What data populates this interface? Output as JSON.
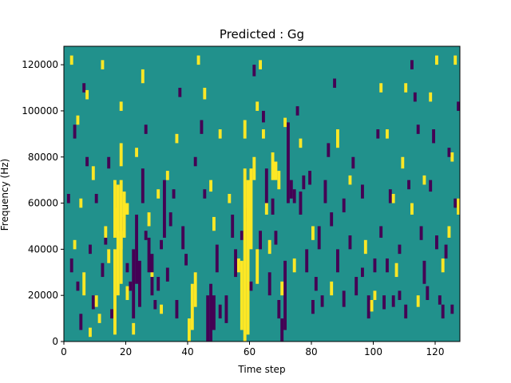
{
  "chart_data": {
    "type": "heatmap",
    "title": "Predicted : Gg",
    "xlabel": "Time step",
    "ylabel": "Frequency (Hz)",
    "xlim": [
      0,
      128
    ],
    "ylim": [
      0,
      128000
    ],
    "x_ticks": [
      0,
      20,
      40,
      60,
      80,
      100,
      120
    ],
    "y_ticks": [
      0,
      20000,
      40000,
      60000,
      80000,
      100000,
      120000
    ],
    "x_tick_labels": [
      "0",
      "20",
      "40",
      "60",
      "80",
      "100",
      "120"
    ],
    "y_tick_labels": [
      "0",
      "20000",
      "40000",
      "60000",
      "80000",
      "100000",
      "120000"
    ],
    "grid": false,
    "colormap": {
      "low": "#440154",
      "mid": "#21918c",
      "high": "#fde725"
    },
    "background_value": "mid",
    "bins": {
      "time_steps": 128,
      "frequency_bins": 128,
      "bin_width_hz": 1000
    },
    "high_segments": [
      [
        16,
        3000,
        40000
      ],
      [
        16,
        45000,
        70000
      ],
      [
        17,
        20000,
        68000
      ],
      [
        18,
        25000,
        70000
      ],
      [
        18,
        40000,
        48000
      ],
      [
        19,
        45000,
        65000
      ],
      [
        18,
        76000,
        86000
      ],
      [
        16,
        48000,
        58000
      ],
      [
        57,
        5000,
        35000
      ],
      [
        58,
        0,
        75000
      ],
      [
        59,
        3000,
        70000
      ],
      [
        60,
        40000,
        75000
      ],
      [
        58,
        88000,
        96000
      ],
      [
        62,
        25000,
        40000
      ],
      [
        61,
        70000,
        80000
      ],
      [
        41,
        5000,
        25000
      ],
      [
        42,
        15000,
        30000
      ],
      [
        40,
        0,
        10000
      ],
      [
        67,
        70000,
        82000
      ],
      [
        68,
        70000,
        78000
      ],
      [
        69,
        66000,
        74000
      ],
      [
        20,
        55000,
        60000
      ],
      [
        20,
        18000,
        24000
      ],
      [
        22,
        3000,
        8000
      ],
      [
        13,
        45000,
        50000
      ],
      [
        10,
        15000,
        20000
      ],
      [
        6,
        20000,
        30000
      ],
      [
        3,
        40000,
        44000
      ],
      [
        2,
        120000,
        124000
      ],
      [
        7,
        105000,
        109000
      ],
      [
        12,
        118000,
        122000
      ],
      [
        18,
        100000,
        104000
      ],
      [
        25,
        112000,
        118000
      ],
      [
        28,
        28000,
        30000
      ],
      [
        30,
        62000,
        66000
      ],
      [
        33,
        70000,
        74000
      ],
      [
        36,
        86000,
        90000
      ],
      [
        43,
        120000,
        124000
      ],
      [
        45,
        105000,
        110000
      ],
      [
        47,
        65000,
        70000
      ],
      [
        48,
        48000,
        54000
      ],
      [
        50,
        88000,
        92000
      ],
      [
        53,
        60000,
        64000
      ],
      [
        56,
        30000,
        36000
      ],
      [
        62,
        100000,
        104000
      ],
      [
        63,
        118000,
        122000
      ],
      [
        64,
        88000,
        92000
      ],
      [
        65,
        55000,
        60000
      ],
      [
        66,
        38000,
        44000
      ],
      [
        71,
        93000,
        97000
      ],
      [
        74,
        30000,
        36000
      ],
      [
        88,
        84000,
        92000
      ],
      [
        92,
        68000,
        72000
      ],
      [
        97,
        38000,
        44000
      ],
      [
        99,
        13000,
        18000
      ],
      [
        100,
        18000,
        22000
      ],
      [
        102,
        108000,
        112000
      ],
      [
        104,
        88000,
        92000
      ],
      [
        106,
        60000,
        64000
      ],
      [
        107,
        28000,
        34000
      ],
      [
        109,
        75000,
        80000
      ],
      [
        110,
        108000,
        112000
      ],
      [
        112,
        55000,
        60000
      ],
      [
        114,
        15000,
        20000
      ],
      [
        116,
        68000,
        72000
      ],
      [
        118,
        104000,
        108000
      ],
      [
        120,
        120000,
        124000
      ],
      [
        122,
        30000,
        36000
      ],
      [
        124,
        45000,
        50000
      ],
      [
        125,
        78000,
        82000
      ],
      [
        126,
        120000,
        124000
      ],
      [
        127,
        55000,
        62000
      ],
      [
        86,
        20000,
        26000
      ],
      [
        80,
        44000,
        50000
      ],
      [
        76,
        84000,
        88000
      ],
      [
        70,
        20000,
        26000
      ],
      [
        31,
        12000,
        16000
      ],
      [
        27,
        50000,
        56000
      ],
      [
        23,
        80000,
        84000
      ],
      [
        9,
        70000,
        76000
      ],
      [
        5,
        58000,
        62000
      ],
      [
        4,
        94000,
        98000
      ],
      [
        14,
        34000,
        40000
      ],
      [
        11,
        8000,
        12000
      ],
      [
        8,
        2000,
        6000
      ]
    ],
    "low_segments": [
      [
        46,
        0,
        20000
      ],
      [
        47,
        0,
        25000
      ],
      [
        48,
        5000,
        20000
      ],
      [
        36,
        10000,
        18000
      ],
      [
        72,
        60000,
        95000
      ],
      [
        73,
        62000,
        70000
      ],
      [
        74,
        60000,
        66000
      ],
      [
        71,
        5000,
        35000
      ],
      [
        70,
        0,
        10000
      ],
      [
        22,
        10000,
        40000
      ],
      [
        23,
        25000,
        55000
      ],
      [
        24,
        15000,
        35000
      ],
      [
        25,
        60000,
        75000
      ],
      [
        27,
        30000,
        45000
      ],
      [
        28,
        20000,
        38000
      ],
      [
        32,
        45000,
        70000
      ],
      [
        38,
        40000,
        50000
      ],
      [
        49,
        30000,
        42000
      ],
      [
        52,
        8000,
        20000
      ],
      [
        54,
        45000,
        55000
      ],
      [
        55,
        28000,
        40000
      ],
      [
        63,
        40000,
        48000
      ],
      [
        65,
        60000,
        75000
      ],
      [
        66,
        20000,
        30000
      ],
      [
        67,
        55000,
        62000
      ],
      [
        69,
        10000,
        18000
      ],
      [
        76,
        55000,
        65000
      ],
      [
        78,
        30000,
        40000
      ],
      [
        80,
        12000,
        18000
      ],
      [
        82,
        40000,
        50000
      ],
      [
        84,
        60000,
        70000
      ],
      [
        86,
        50000,
        56000
      ],
      [
        88,
        30000,
        40000
      ],
      [
        90,
        15000,
        22000
      ],
      [
        92,
        40000,
        46000
      ],
      [
        94,
        20000,
        28000
      ],
      [
        96,
        62000,
        68000
      ],
      [
        98,
        10000,
        20000
      ],
      [
        100,
        30000,
        36000
      ],
      [
        102,
        45000,
        50000
      ],
      [
        104,
        30000,
        36000
      ],
      [
        106,
        15000,
        20000
      ],
      [
        108,
        38000,
        42000
      ],
      [
        110,
        10000,
        16000
      ],
      [
        112,
        118000,
        122000
      ],
      [
        114,
        90000,
        94000
      ],
      [
        116,
        25000,
        35000
      ],
      [
        118,
        65000,
        70000
      ],
      [
        120,
        40000,
        46000
      ],
      [
        122,
        10000,
        16000
      ],
      [
        124,
        80000,
        84000
      ],
      [
        126,
        58000,
        62000
      ],
      [
        5,
        5000,
        12000
      ],
      [
        6,
        108000,
        112000
      ],
      [
        3,
        88000,
        94000
      ],
      [
        8,
        38000,
        42000
      ],
      [
        10,
        60000,
        64000
      ],
      [
        12,
        28000,
        34000
      ],
      [
        14,
        75000,
        80000
      ],
      [
        19,
        48000,
        54000
      ],
      [
        20,
        30000,
        34000
      ],
      [
        26,
        90000,
        94000
      ],
      [
        29,
        14000,
        18000
      ],
      [
        31,
        40000,
        44000
      ],
      [
        34,
        50000,
        56000
      ],
      [
        35,
        62000,
        66000
      ],
      [
        37,
        106000,
        110000
      ],
      [
        39,
        33000,
        38000
      ],
      [
        42,
        76000,
        80000
      ],
      [
        44,
        90000,
        96000
      ],
      [
        45,
        62000,
        66000
      ],
      [
        50,
        10000,
        16000
      ],
      [
        57,
        44000,
        48000
      ],
      [
        59,
        52000,
        58000
      ],
      [
        60,
        22000,
        26000
      ],
      [
        61,
        115000,
        120000
      ],
      [
        64,
        95000,
        100000
      ],
      [
        68,
        42000,
        48000
      ],
      [
        75,
        98000,
        102000
      ],
      [
        77,
        66000,
        72000
      ],
      [
        79,
        68000,
        74000
      ],
      [
        81,
        22000,
        28000
      ],
      [
        83,
        15000,
        20000
      ],
      [
        85,
        80000,
        86000
      ],
      [
        87,
        110000,
        114000
      ],
      [
        90,
        56000,
        62000
      ],
      [
        93,
        75000,
        80000
      ],
      [
        96,
        28000,
        32000
      ],
      [
        101,
        88000,
        92000
      ],
      [
        103,
        14000,
        20000
      ],
      [
        105,
        60000,
        66000
      ],
      [
        108,
        18000,
        22000
      ],
      [
        111,
        66000,
        70000
      ],
      [
        113,
        104000,
        108000
      ],
      [
        115,
        44000,
        50000
      ],
      [
        117,
        18000,
        24000
      ],
      [
        119,
        86000,
        92000
      ],
      [
        121,
        16000,
        20000
      ],
      [
        123,
        36000,
        42000
      ],
      [
        125,
        12000,
        16000
      ],
      [
        127,
        100000,
        104000
      ],
      [
        1,
        60000,
        64000
      ],
      [
        2,
        30000,
        36000
      ],
      [
        4,
        22000,
        26000
      ],
      [
        7,
        76000,
        80000
      ],
      [
        9,
        14000,
        20000
      ],
      [
        13,
        42000,
        46000
      ],
      [
        15,
        10000,
        14000
      ],
      [
        21,
        22000,
        26000
      ],
      [
        26,
        44000,
        48000
      ],
      [
        30,
        22000,
        28000
      ],
      [
        33,
        26000,
        32000
      ]
    ]
  }
}
